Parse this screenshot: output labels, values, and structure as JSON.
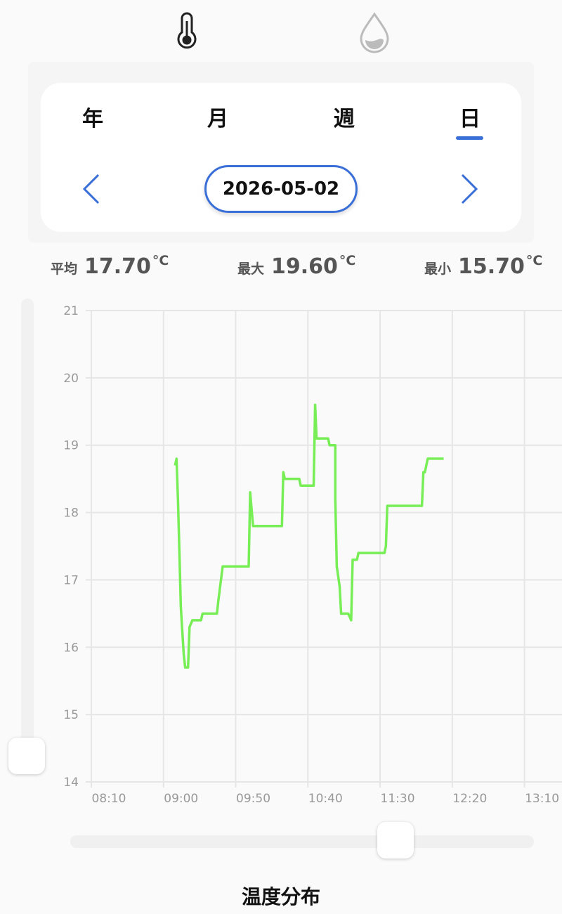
{
  "tabs": {
    "items": [
      "年",
      "月",
      "週",
      "日"
    ],
    "active": 3
  },
  "date": "2026-05-02",
  "stats": [
    {
      "label": "平均",
      "value": "17.70",
      "unit": "°C"
    },
    {
      "label": "最大",
      "value": "19.60",
      "unit": "°C"
    },
    {
      "label": "最小",
      "value": "15.70",
      "unit": "°C"
    }
  ],
  "chart_data": {
    "type": "line",
    "color": "#77ee55",
    "x": [
      548,
      549,
      550,
      551,
      552,
      554,
      555,
      557,
      558,
      560,
      566,
      567,
      577,
      578,
      581,
      599,
      600,
      602,
      622,
      623,
      624,
      634,
      635,
      644,
      645,
      646,
      654,
      655,
      659,
      659,
      660,
      662,
      663,
      668,
      670,
      671,
      674,
      675,
      693,
      694,
      695,
      719,
      720,
      721,
      723,
      734
    ],
    "values": [
      18.7,
      18.8,
      18.2,
      17.4,
      16.6,
      15.9,
      15.7,
      15.7,
      16.3,
      16.4,
      16.4,
      16.5,
      16.5,
      16.7,
      17.2,
      17.2,
      18.3,
      17.8,
      17.8,
      18.6,
      18.5,
      18.5,
      18.4,
      18.4,
      19.6,
      19.1,
      19.1,
      19.0,
      19.0,
      18.2,
      17.2,
      16.9,
      16.5,
      16.5,
      16.4,
      17.3,
      17.3,
      17.4,
      17.4,
      17.5,
      18.1,
      18.1,
      18.6,
      18.6,
      18.8,
      18.8
    ],
    "xlim": [
      490,
      816
    ],
    "ylim": [
      14,
      21
    ],
    "xticks": [
      {
        "value": 490,
        "label": "08:10"
      },
      {
        "value": 540,
        "label": "09:00"
      },
      {
        "value": 590,
        "label": "09:50"
      },
      {
        "value": 640,
        "label": "10:40"
      },
      {
        "value": 690,
        "label": "11:30"
      },
      {
        "value": 740,
        "label": "12:20"
      },
      {
        "value": 790,
        "label": "13:10"
      }
    ],
    "yticks": [
      14,
      15,
      16,
      17,
      18,
      19,
      20,
      21
    ],
    "grid": true
  },
  "section_title": "温度分布"
}
